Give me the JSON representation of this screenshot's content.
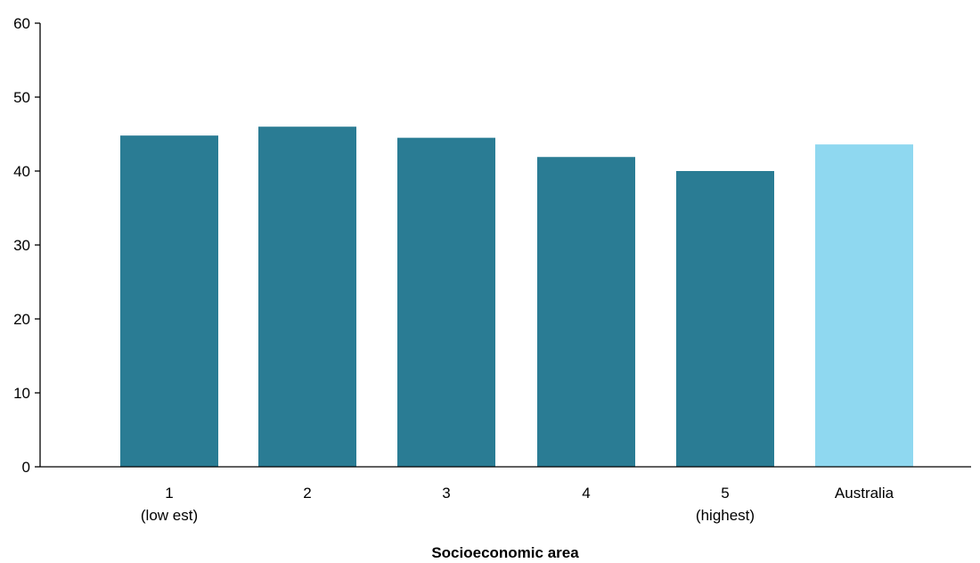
{
  "chart_data": {
    "type": "bar",
    "categories": [
      [
        "1",
        "(low est)"
      ],
      [
        "2"
      ],
      [
        "3"
      ],
      [
        "4"
      ],
      [
        "5",
        "(highest)"
      ],
      [
        "Australia"
      ]
    ],
    "values": [
      44.8,
      46.0,
      44.5,
      41.9,
      40.0,
      43.6
    ],
    "bar_colors": [
      "#2a7c94",
      "#2a7c94",
      "#2a7c94",
      "#2a7c94",
      "#2a7c94",
      "#8fd8f0"
    ],
    "title": "",
    "xlabel": "Socioeconomic area",
    "ylabel": "",
    "ylim": [
      0,
      60
    ],
    "yticks": [
      "0",
      "10",
      "20",
      "30",
      "40",
      "50",
      "60"
    ],
    "grid": false,
    "legend": "none"
  }
}
